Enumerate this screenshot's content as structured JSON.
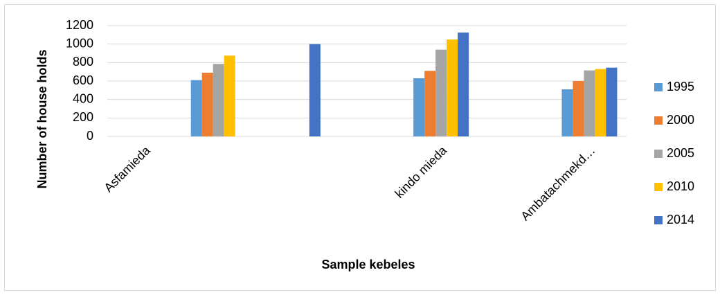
{
  "chart_data": {
    "type": "bar",
    "x_label": "Sample kebeles",
    "y_label": "Number of house holds",
    "categories": [
      "Asfamieda",
      null,
      null,
      null,
      "kindo mieda",
      null,
      "Ambatachmekd…"
    ],
    "series": [
      {
        "name": "1995",
        "color": "#5b9bd5",
        "values": [
          null,
          610,
          null,
          null,
          630,
          null,
          510
        ]
      },
      {
        "name": "2000",
        "color": "#ed7d31",
        "values": [
          null,
          690,
          null,
          null,
          710,
          null,
          600
        ]
      },
      {
        "name": "2005",
        "color": "#a5a5a5",
        "values": [
          null,
          785,
          null,
          null,
          940,
          null,
          715
        ]
      },
      {
        "name": "2010",
        "color": "#ffc000",
        "values": [
          null,
          875,
          null,
          null,
          1050,
          null,
          730
        ]
      },
      {
        "name": "2014",
        "color": "#4472c4",
        "values": [
          null,
          null,
          1000,
          null,
          1125,
          null,
          745
        ]
      }
    ],
    "ylim": [
      0,
      1200
    ],
    "yticks": [
      0,
      200,
      400,
      600,
      800,
      1000,
      1200
    ],
    "grid": true,
    "legend": "right"
  }
}
